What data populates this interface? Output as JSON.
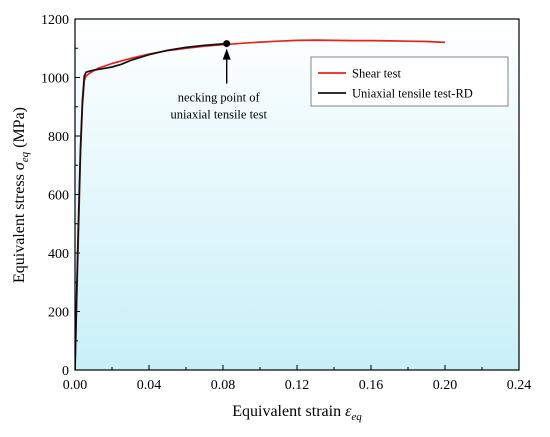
{
  "chart_data": {
    "type": "line",
    "xlabel_text": "Equivalent strain ",
    "xlabel_symbol": "ε",
    "xlabel_sub": "eq",
    "ylabel_text": "Equivalent stress ",
    "ylabel_symbol": "σ",
    "ylabel_sub": "eq",
    "ylabel_unit": " (MPa)",
    "xlim": [
      0,
      0.24
    ],
    "ylim": [
      0,
      1200
    ],
    "xticks": [
      0.0,
      0.04,
      0.08,
      0.12,
      0.16,
      0.2,
      0.24
    ],
    "xtick_labels": [
      "0.00",
      "0.04",
      "0.08",
      "0.12",
      "0.16",
      "0.20",
      "0.24"
    ],
    "yticks": [
      0,
      200,
      400,
      600,
      800,
      1000,
      1200
    ],
    "ytick_labels": [
      "0",
      "200",
      "400",
      "600",
      "800",
      "1000",
      "1200"
    ],
    "grid": false,
    "legend_position": "top-right",
    "background_gradient": [
      "#ffffff",
      "#c8f0f8"
    ],
    "series": [
      {
        "name": "Shear test",
        "color": "#e8231f",
        "x": [
          0.0,
          0.001,
          0.002,
          0.003,
          0.004,
          0.005,
          0.006,
          0.008,
          0.012,
          0.02,
          0.03,
          0.04,
          0.05,
          0.06,
          0.07,
          0.08,
          0.09,
          0.1,
          0.11,
          0.12,
          0.13,
          0.14,
          0.15,
          0.16,
          0.17,
          0.18,
          0.19,
          0.2
        ],
        "y": [
          0,
          250,
          500,
          740,
          900,
          990,
          1005,
          1015,
          1030,
          1048,
          1065,
          1080,
          1092,
          1100,
          1107,
          1112,
          1117,
          1121,
          1124,
          1127,
          1128,
          1127,
          1126,
          1126,
          1125,
          1124,
          1123,
          1120
        ]
      },
      {
        "name": "Uniaxial tensile test-RD",
        "color": "#111111",
        "x": [
          0.0,
          0.001,
          0.002,
          0.003,
          0.004,
          0.005,
          0.006,
          0.008,
          0.01,
          0.015,
          0.02,
          0.025,
          0.03,
          0.04,
          0.05,
          0.06,
          0.07,
          0.08,
          0.082
        ],
        "y": [
          0,
          280,
          540,
          760,
          920,
          1005,
          1018,
          1022,
          1025,
          1030,
          1036,
          1045,
          1058,
          1078,
          1093,
          1103,
          1110,
          1115,
          1116
        ]
      }
    ],
    "annotation": {
      "line1": "necking point of",
      "line2": "uniaxial tensile test",
      "point_x": 0.082,
      "point_y": 1116
    }
  }
}
